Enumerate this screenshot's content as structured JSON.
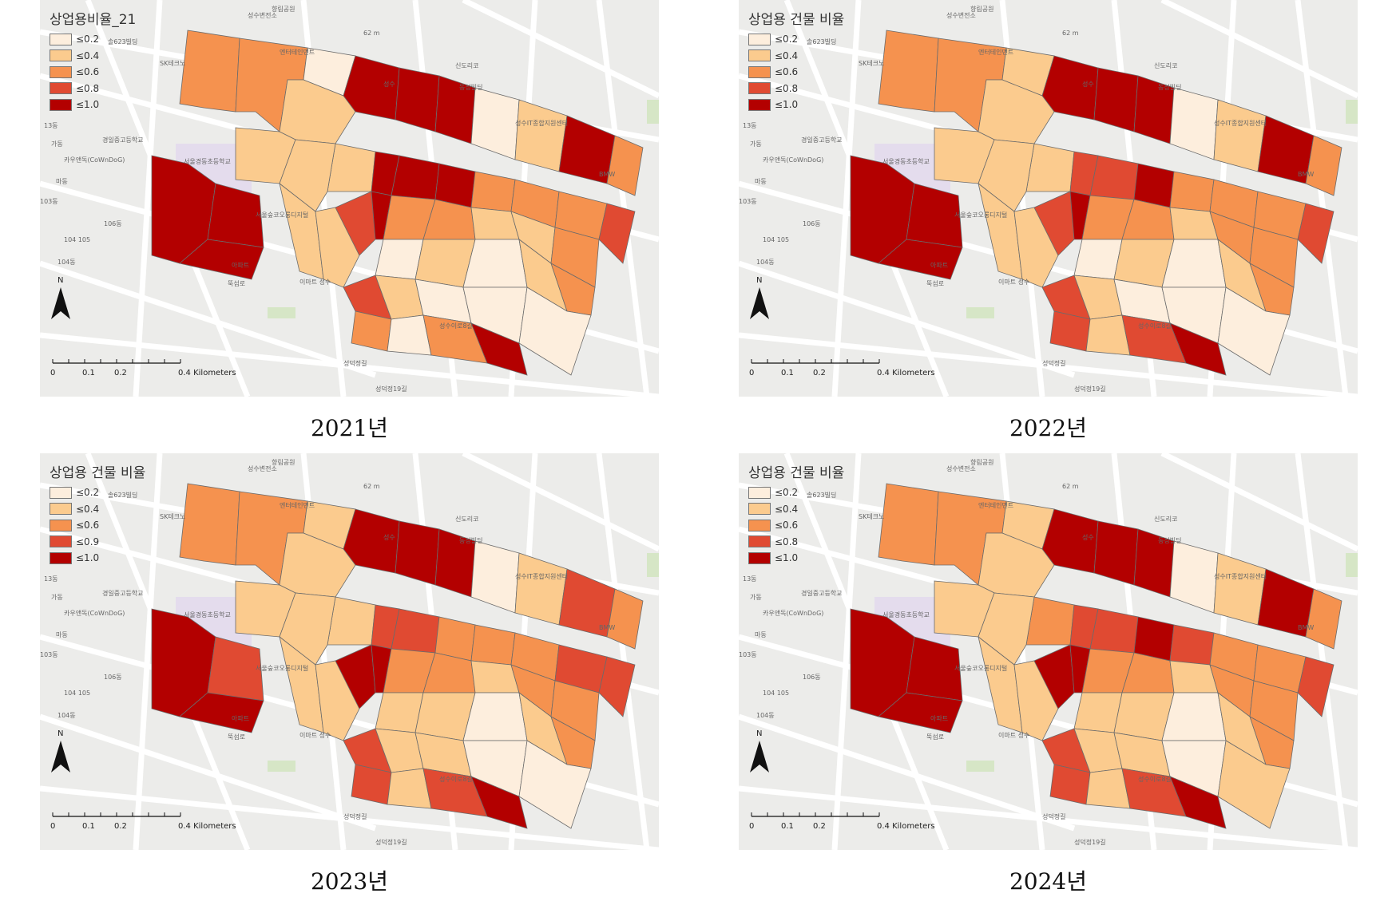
{
  "colors": {
    "class_1": "#fdeedd",
    "class_2": "#fbcb8e",
    "class_3": "#f5924f",
    "class_4": "#e04a32",
    "class_5": "#b30000",
    "basemap": "#ececea",
    "street": "#ffffff",
    "park": "#d6e6c6",
    "school": "#e4dced"
  },
  "basemap_labels": [
    "성수변전소",
    "향림공원",
    "62 m",
    "솔623빌딩",
    "SK테크노",
    "엔터테인먼트",
    "신도리코",
    "동성빌딩",
    "성수",
    "성수IT종합지원센터",
    "경일중고등학교",
    "가동",
    "카우앤독(CoWnDoG)",
    "서울경동초등학교",
    "서울숲코오롱디지털",
    "BMW",
    "이마트 성수",
    "성수이로8갈",
    "104 105",
    "104동",
    "103동",
    "106동",
    "13동",
    "마동",
    "성덕정길",
    "성덕정19길",
    "아파트",
    "뚝섬로",
    "N"
  ],
  "scale_bar": {
    "ticks": [
      "0",
      "0.1",
      "0.2",
      "0.4 Kilometers"
    ]
  },
  "maps": [
    {
      "caption": "2021년",
      "legend": {
        "title": "상업용비율_21",
        "classes": [
          "≤0.2",
          "≤0.4",
          "≤0.6",
          "≤0.8",
          "≤1.0"
        ]
      }
    },
    {
      "caption": "2022년",
      "legend": {
        "title": "상업용 건물 비율",
        "classes": [
          "≤0.2",
          "≤0.4",
          "≤0.6",
          "≤0.8",
          "≤1.0"
        ]
      }
    },
    {
      "caption": "2023년",
      "legend": {
        "title": "상업용 건물 비율",
        "classes": [
          "≤0.2",
          "≤0.4",
          "≤0.6",
          "≤0.9",
          "≤1.0"
        ]
      }
    },
    {
      "caption": "2024년",
      "legend": {
        "title": "상업용 건물 비율",
        "classes": [
          "≤0.2",
          "≤0.4",
          "≤0.6",
          "≤0.8",
          "≤1.0"
        ]
      }
    }
  ]
}
